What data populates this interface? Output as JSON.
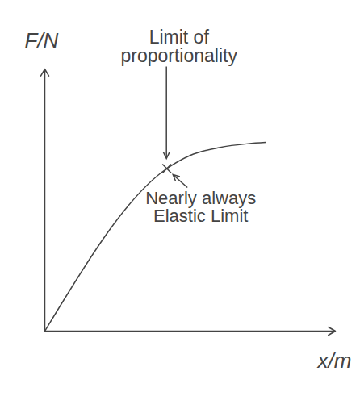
{
  "chart_data": {
    "type": "line",
    "x_label": "x/m",
    "y_label": "F/N",
    "x": [
      0,
      4.2,
      5,
      6,
      7,
      7.6
    ],
    "values": [
      0,
      6.2,
      6.7,
      7.0,
      7.15,
      7.2
    ],
    "xlim": [
      0,
      10
    ],
    "ylim": [
      0,
      10
    ],
    "xticks": [],
    "yticks": [],
    "tick_labels": false,
    "color": "#444444",
    "annotations": [
      {
        "text": "Limit of proportionality",
        "x": 4.2,
        "y": 6.2
      },
      {
        "text": "Nearly always Elastic Limit",
        "x": 4.2,
        "y": 6.2
      }
    ]
  }
}
